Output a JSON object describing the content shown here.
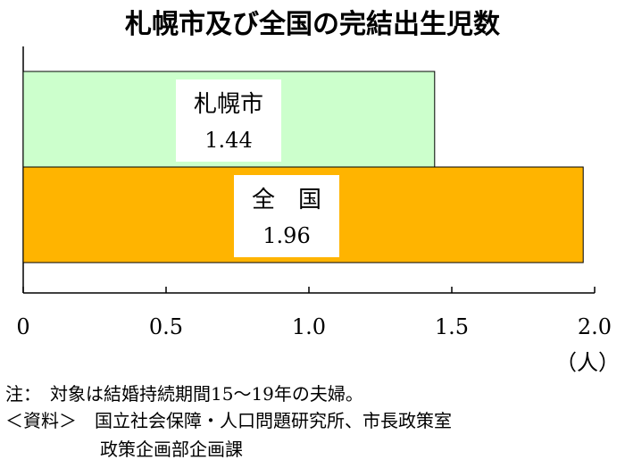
{
  "chart_data": {
    "type": "bar",
    "orientation": "horizontal",
    "title": "札幌市及び全国の完結出生児数",
    "categories": [
      "札幌市",
      "全　国"
    ],
    "values": [
      1.44,
      1.96
    ],
    "value_labels": [
      "1.44",
      "1.96"
    ],
    "bar_colors": [
      "#ccffcc",
      "#ffb400"
    ],
    "xlim": [
      0,
      2.0
    ],
    "xticks": [
      0,
      0.5,
      1.0,
      1.5,
      2.0
    ],
    "xtick_labels": [
      "0",
      "0.5",
      "1.0",
      "1.5",
      "2.0"
    ],
    "xunit": "（人）",
    "grid": false
  },
  "notes": {
    "line1": "注：　対象は結婚持続期間15～19年の夫婦。",
    "line2": "＜資料＞　国立社会保障・人口問題研究所、市長政策室",
    "line3": "政策企画部企画課"
  }
}
